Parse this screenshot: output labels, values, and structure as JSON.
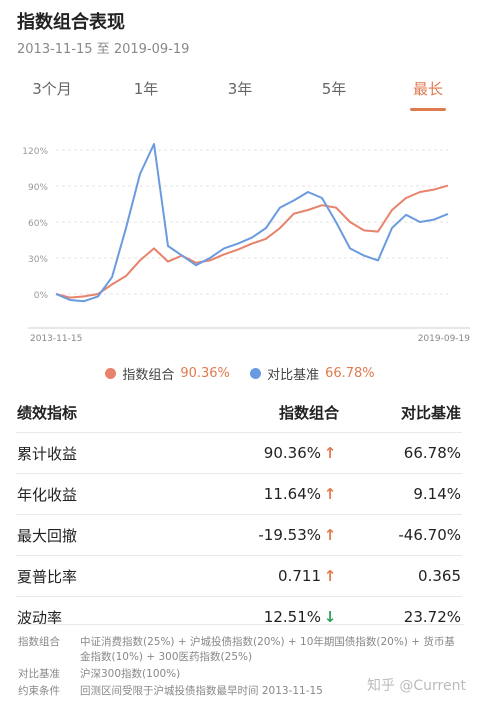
{
  "header": {
    "title": "指数组合表现",
    "date_range": "2013-11-15 至 2019-09-19"
  },
  "tabs": [
    {
      "label": "3个月",
      "active": false
    },
    {
      "label": "1年",
      "active": false
    },
    {
      "label": "3年",
      "active": false
    },
    {
      "label": "5年",
      "active": false
    },
    {
      "label": "最长",
      "active": true
    }
  ],
  "colors": {
    "accent": "#e07a4f",
    "portfolio": "#e8826a",
    "benchmark": "#6a9be0",
    "down": "#2e9e5b"
  },
  "chart_data": {
    "type": "line",
    "x_start_label": "2013-11-15",
    "x_end_label": "2019-09-19",
    "yticks": [
      "120%",
      "90%",
      "60%",
      "30%",
      "0%"
    ],
    "ylim": [
      -20,
      130
    ],
    "grid": true,
    "series": [
      {
        "name": "指数组合",
        "x": [
          "2013-11",
          "2014-02",
          "2014-05",
          "2014-08",
          "2014-11",
          "2015-02",
          "2015-04",
          "2015-06",
          "2015-08",
          "2015-11",
          "2016-02",
          "2016-05",
          "2016-08",
          "2016-11",
          "2017-02",
          "2017-05",
          "2017-08",
          "2017-11",
          "2018-02",
          "2018-04",
          "2018-06",
          "2018-08",
          "2018-10",
          "2018-12",
          "2019-02",
          "2019-04",
          "2019-06",
          "2019-08",
          "2019-09"
        ],
        "values": [
          0,
          -3,
          -2,
          0,
          8,
          15,
          28,
          38,
          27,
          32,
          26,
          28,
          33,
          37,
          42,
          46,
          55,
          67,
          70,
          74,
          72,
          60,
          53,
          52,
          70,
          80,
          85,
          87,
          90.36
        ]
      },
      {
        "name": "对比基准",
        "x": [
          "2013-11",
          "2014-02",
          "2014-05",
          "2014-08",
          "2014-11",
          "2015-02",
          "2015-04",
          "2015-06",
          "2015-08",
          "2015-11",
          "2016-02",
          "2016-05",
          "2016-08",
          "2016-11",
          "2017-02",
          "2017-05",
          "2017-08",
          "2017-11",
          "2018-02",
          "2018-04",
          "2018-06",
          "2018-08",
          "2018-10",
          "2018-12",
          "2019-02",
          "2019-04",
          "2019-06",
          "2019-08",
          "2019-09"
        ],
        "values": [
          0,
          -5,
          -6,
          -2,
          14,
          55,
          100,
          125,
          40,
          32,
          24,
          30,
          38,
          42,
          47,
          55,
          72,
          78,
          85,
          80,
          60,
          38,
          32,
          28,
          55,
          66,
          60,
          62,
          66.78
        ]
      }
    ]
  },
  "legend": [
    {
      "name": "指数组合",
      "value": "90.36%"
    },
    {
      "name": "对比基准",
      "value": "66.78%"
    }
  ],
  "table": {
    "headers": [
      "绩效指标",
      "指数组合",
      "对比基准"
    ],
    "rows": [
      {
        "label": "累计收益",
        "portfolio": "90.36%",
        "arrow": "↑",
        "dir": "up",
        "benchmark": "66.78%"
      },
      {
        "label": "年化收益",
        "portfolio": "11.64%",
        "arrow": "↑",
        "dir": "up",
        "benchmark": "9.14%"
      },
      {
        "label": "最大回撤",
        "portfolio": "-19.53%",
        "arrow": "↑",
        "dir": "up",
        "benchmark": "-46.70%"
      },
      {
        "label": "夏普比率",
        "portfolio": "0.711",
        "arrow": "↑",
        "dir": "up",
        "benchmark": "0.365"
      },
      {
        "label": "波动率",
        "portfolio": "12.51%",
        "arrow": "↓",
        "dir": "down",
        "benchmark": "23.72%"
      }
    ]
  },
  "footnotes": [
    {
      "label": "指数组合",
      "text": "中证消费指数(25%) + 沪城投债指数(20%) + 10年期国债指数(20%) + 货币基金指数(10%) + 300医药指数(25%)"
    },
    {
      "label": "对比基准",
      "text": "沪深300指数(100%)"
    },
    {
      "label": "约束条件",
      "text": "回测区间受限于沪城投债指数最早时间 2013-11-15"
    }
  ],
  "watermark": "知乎 @Current"
}
